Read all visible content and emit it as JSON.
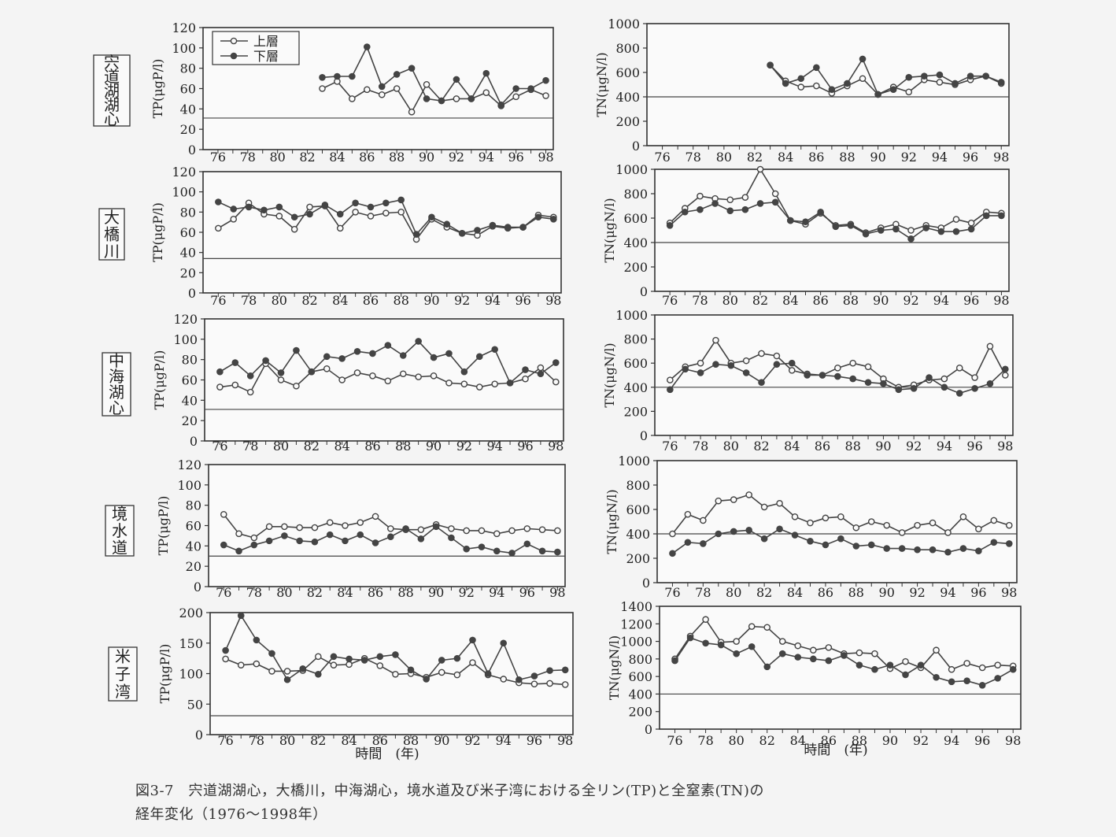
{
  "figure": {
    "caption_line1": "図3-7　宍道湖湖心，大橋川，中海湖心，境水道及び米子湾における全リン(TP)と全窒素(TN)の",
    "caption_line2": "経年変化（1976～1998年）",
    "xlabel_bottom": "時間　(年)"
  },
  "legend": {
    "upper": "上層",
    "lower": "下層"
  },
  "sites": [
    "宍道湖湖心",
    "大橋川",
    "中海湖心",
    "境水道",
    "米子湾"
  ],
  "chart_data": [
    {
      "type": "line",
      "site": "宍道湖湖心",
      "ylabel": "TP(μgP/l)",
      "yticks": [
        0,
        20,
        40,
        60,
        80,
        100,
        120
      ],
      "ylim": [
        0,
        120
      ],
      "xlim": [
        75,
        98.5
      ],
      "xticks": [
        "76",
        "78",
        "80",
        "82",
        "84",
        "86",
        "88",
        "90",
        "92",
        "94",
        "96",
        "98"
      ],
      "reference_line": 31,
      "legend": true,
      "series": [
        {
          "name": "上層",
          "marker": "open",
          "start_year": 83,
          "values": [
            60,
            67,
            50,
            59,
            54,
            60,
            37,
            64,
            48,
            50,
            50,
            56,
            43,
            52,
            59,
            53
          ]
        },
        {
          "name": "下層",
          "marker": "filled",
          "start_year": 83,
          "values": [
            71,
            72,
            72,
            101,
            62,
            74,
            80,
            50,
            48,
            69,
            50,
            75,
            44,
            60,
            60,
            68
          ]
        }
      ]
    },
    {
      "type": "line",
      "site": "宍道湖湖心",
      "ylabel": "TN(μgN/l)",
      "yticks": [
        0,
        200,
        400,
        600,
        800,
        1000
      ],
      "ylim": [
        0,
        1000
      ],
      "xlim": [
        75,
        98.5
      ],
      "xticks": [
        "76",
        "78",
        "80",
        "82",
        "84",
        "86",
        "88",
        "90",
        "92",
        "94",
        "96",
        "98"
      ],
      "reference_line": 400,
      "series": [
        {
          "name": "上層",
          "marker": "open",
          "start_year": 83,
          "values": [
            660,
            530,
            480,
            490,
            430,
            490,
            550,
            420,
            480,
            440,
            540,
            520,
            500,
            540,
            570,
            510
          ]
        },
        {
          "name": "下層",
          "marker": "filled",
          "start_year": 83,
          "values": [
            660,
            510,
            550,
            640,
            460,
            510,
            710,
            420,
            460,
            560,
            570,
            580,
            510,
            570,
            570,
            520
          ]
        }
      ]
    },
    {
      "type": "line",
      "site": "大橋川",
      "ylabel": "TP(μgP/l)",
      "yticks": [
        0,
        20,
        40,
        60,
        80,
        100,
        120
      ],
      "ylim": [
        0,
        120
      ],
      "xlim": [
        75,
        98.5
      ],
      "xticks": [
        "76",
        "78",
        "80",
        "82",
        "84",
        "86",
        "88",
        "90",
        "92",
        "94",
        "96",
        "98"
      ],
      "reference_line": 34,
      "series": [
        {
          "name": "上層",
          "marker": "open",
          "start_year": 76,
          "values": [
            64,
            73,
            89,
            78,
            76,
            63,
            85,
            86,
            64,
            80,
            76,
            79,
            80,
            53,
            73,
            65,
            59,
            57,
            66,
            64,
            65,
            77,
            75
          ]
        },
        {
          "name": "下層",
          "marker": "filled",
          "start_year": 76,
          "values": [
            90,
            83,
            85,
            82,
            85,
            75,
            78,
            87,
            78,
            89,
            85,
            89,
            92,
            58,
            75,
            68,
            59,
            62,
            67,
            65,
            65,
            75,
            73
          ]
        }
      ]
    },
    {
      "type": "line",
      "site": "大橋川",
      "ylabel": "TN(μgN/l)",
      "yticks": [
        0,
        200,
        400,
        600,
        800,
        1000
      ],
      "ylim": [
        0,
        1000
      ],
      "xlim": [
        75,
        98.5
      ],
      "xticks": [
        "76",
        "78",
        "80",
        "82",
        "84",
        "86",
        "88",
        "90",
        "92",
        "94",
        "96",
        "98"
      ],
      "reference_line": 400,
      "series": [
        {
          "name": "上層",
          "marker": "open",
          "start_year": 76,
          "values": [
            560,
            680,
            780,
            760,
            750,
            770,
            1000,
            800,
            580,
            550,
            640,
            540,
            550,
            480,
            520,
            550,
            500,
            540,
            520,
            590,
            560,
            650,
            640
          ]
        },
        {
          "name": "下層",
          "marker": "filled",
          "start_year": 76,
          "values": [
            540,
            650,
            670,
            720,
            660,
            670,
            720,
            730,
            580,
            570,
            650,
            530,
            540,
            470,
            500,
            510,
            430,
            520,
            490,
            490,
            510,
            620,
            620
          ]
        }
      ]
    },
    {
      "type": "line",
      "site": "中海湖心",
      "ylabel": "TP(μgP/l)",
      "yticks": [
        0,
        20,
        40,
        60,
        80,
        100,
        120
      ],
      "ylim": [
        0,
        120
      ],
      "xlim": [
        75,
        98.5
      ],
      "xticks": [
        "76",
        "78",
        "80",
        "82",
        "84",
        "86",
        "88",
        "90",
        "92",
        "94",
        "96",
        "98"
      ],
      "reference_line": 31,
      "series": [
        {
          "name": "上層",
          "marker": "open",
          "start_year": 76,
          "values": [
            53,
            55,
            48,
            76,
            60,
            54,
            68,
            71,
            60,
            67,
            64,
            59,
            66,
            63,
            64,
            57,
            56,
            53,
            56,
            57,
            61,
            72,
            58
          ]
        },
        {
          "name": "下層",
          "marker": "filled",
          "start_year": 76,
          "values": [
            68,
            77,
            64,
            79,
            67,
            89,
            68,
            83,
            81,
            88,
            86,
            94,
            84,
            98,
            82,
            86,
            68,
            83,
            90,
            57,
            70,
            66,
            77
          ]
        }
      ]
    },
    {
      "type": "line",
      "site": "中海湖心",
      "ylabel": "TN(μgN/l)",
      "yticks": [
        0,
        200,
        400,
        600,
        800,
        1000
      ],
      "ylim": [
        0,
        1000
      ],
      "xlim": [
        75,
        98.5
      ],
      "xticks": [
        "76",
        "78",
        "80",
        "82",
        "84",
        "86",
        "88",
        "90",
        "92",
        "94",
        "96",
        "98"
      ],
      "reference_line": 400,
      "series": [
        {
          "name": "上層",
          "marker": "open",
          "start_year": 76,
          "values": [
            460,
            570,
            600,
            790,
            600,
            620,
            680,
            660,
            540,
            510,
            500,
            560,
            600,
            570,
            470,
            400,
            420,
            460,
            470,
            560,
            480,
            740,
            500
          ]
        },
        {
          "name": "下層",
          "marker": "filled",
          "start_year": 76,
          "values": [
            380,
            550,
            520,
            590,
            580,
            520,
            440,
            590,
            600,
            500,
            500,
            490,
            470,
            440,
            430,
            380,
            390,
            480,
            400,
            350,
            390,
            430,
            550
          ]
        }
      ]
    },
    {
      "type": "line",
      "site": "境水道",
      "ylabel": "TP(μgP/l)",
      "yticks": [
        0,
        20,
        40,
        60,
        80,
        100,
        120
      ],
      "ylim": [
        0,
        120
      ],
      "xlim": [
        75,
        98.5
      ],
      "xticks": [
        "76",
        "78",
        "80",
        "82",
        "84",
        "86",
        "88",
        "90",
        "92",
        "94",
        "96",
        "98"
      ],
      "reference_line": 30,
      "series": [
        {
          "name": "上層",
          "marker": "open",
          "start_year": 76,
          "values": [
            71,
            52,
            48,
            59,
            59,
            58,
            58,
            63,
            60,
            63,
            69,
            57,
            56,
            56,
            61,
            57,
            55,
            55,
            52,
            55,
            57,
            56,
            55
          ]
        },
        {
          "name": "下層",
          "marker": "filled",
          "start_year": 76,
          "values": [
            41,
            35,
            41,
            45,
            50,
            45,
            44,
            51,
            45,
            51,
            43,
            49,
            57,
            47,
            59,
            48,
            37,
            39,
            35,
            33,
            42,
            35,
            34
          ]
        }
      ]
    },
    {
      "type": "line",
      "site": "境水道",
      "ylabel": "TN(μgN/l)",
      "yticks": [
        0,
        200,
        400,
        600,
        800,
        1000
      ],
      "ylim": [
        0,
        1000
      ],
      "xlim": [
        75,
        98.5
      ],
      "xticks": [
        "76",
        "78",
        "80",
        "82",
        "84",
        "86",
        "88",
        "90",
        "92",
        "94",
        "96",
        "98"
      ],
      "reference_line": 400,
      "series": [
        {
          "name": "上層",
          "marker": "open",
          "start_year": 76,
          "values": [
            400,
            560,
            510,
            670,
            680,
            720,
            620,
            650,
            540,
            490,
            530,
            540,
            450,
            500,
            470,
            410,
            470,
            490,
            410,
            540,
            440,
            510,
            470
          ]
        },
        {
          "name": "下層",
          "marker": "filled",
          "start_year": 76,
          "values": [
            240,
            330,
            320,
            400,
            420,
            430,
            360,
            440,
            390,
            340,
            310,
            360,
            300,
            310,
            280,
            280,
            270,
            270,
            250,
            280,
            260,
            330,
            320
          ]
        }
      ]
    },
    {
      "type": "line",
      "site": "米子湾",
      "ylabel": "TP(μgP/l)",
      "yticks": [
        0,
        50,
        100,
        150,
        200
      ],
      "ylim": [
        0,
        200
      ],
      "xlim": [
        75,
        98.5
      ],
      "xticks": [
        "76",
        "78",
        "80",
        "82",
        "84",
        "86",
        "88",
        "90",
        "92",
        "94",
        "96",
        "98"
      ],
      "reference_line": 31,
      "series": [
        {
          "name": "上層",
          "marker": "open",
          "start_year": 76,
          "values": [
            124,
            114,
            116,
            104,
            104,
            105,
            128,
            114,
            115,
            125,
            113,
            99,
            100,
            94,
            102,
            98,
            118,
            98,
            91,
            85,
            83,
            84,
            82
          ]
        },
        {
          "name": "下層",
          "marker": "filled",
          "start_year": 76,
          "values": [
            138,
            195,
            155,
            133,
            90,
            108,
            99,
            128,
            124,
            122,
            128,
            131,
            106,
            91,
            122,
            125,
            155,
            100,
            150,
            90,
            96,
            105,
            106
          ]
        }
      ]
    },
    {
      "type": "line",
      "site": "米子湾",
      "ylabel": "TN(μgN/l)",
      "yticks": [
        0,
        200,
        400,
        600,
        800,
        1000,
        1200,
        1400
      ],
      "ylim": [
        0,
        1400
      ],
      "xlim": [
        75,
        98.5
      ],
      "xticks": [
        "76",
        "78",
        "80",
        "82",
        "84",
        "86",
        "88",
        "90",
        "92",
        "94",
        "96",
        "98"
      ],
      "reference_line": 400,
      "series": [
        {
          "name": "上層",
          "marker": "open",
          "start_year": 76,
          "values": [
            800,
            1060,
            1250,
            990,
            1000,
            1170,
            1160,
            1000,
            950,
            900,
            930,
            860,
            870,
            860,
            690,
            770,
            700,
            900,
            680,
            750,
            700,
            730,
            720
          ]
        },
        {
          "name": "下層",
          "marker": "filled",
          "start_year": 76,
          "values": [
            780,
            1040,
            980,
            960,
            860,
            940,
            710,
            860,
            820,
            800,
            780,
            840,
            730,
            680,
            730,
            620,
            730,
            590,
            540,
            550,
            500,
            580,
            680
          ]
        }
      ]
    }
  ]
}
